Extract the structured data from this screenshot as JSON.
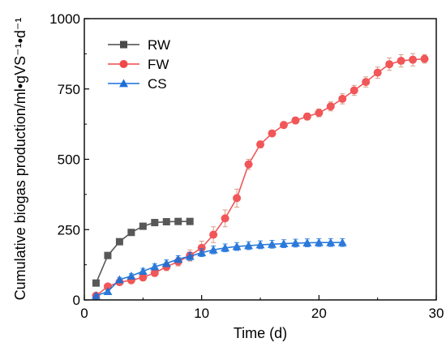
{
  "chart_data": {
    "type": "line",
    "xlabel": "Time (d)",
    "ylabel": "Cumulative biogas production/ml•gVS⁻¹•d⁻¹",
    "xlim": [
      0,
      30
    ],
    "ylim": [
      0,
      1000
    ],
    "xticks": [
      "0",
      "10",
      "20",
      "30"
    ],
    "yticks": [
      "0",
      "250",
      "500",
      "750",
      "1000"
    ],
    "grid": false,
    "legend_position": "top-left",
    "series": [
      {
        "name": "RW",
        "color": "#4a4a4a",
        "marker": "square",
        "x": [
          1,
          2,
          3,
          4,
          5,
          6,
          7,
          8,
          9
        ],
        "y": [
          60,
          158,
          207,
          240,
          262,
          275,
          278,
          279,
          279
        ],
        "err": [
          0,
          0,
          0,
          0,
          0,
          0,
          0,
          0,
          0
        ]
      },
      {
        "name": "FW",
        "color": "#f0484a",
        "marker": "circle",
        "x": [
          1,
          2,
          3,
          4,
          5,
          6,
          7,
          8,
          9,
          10,
          11,
          12,
          13,
          14,
          15,
          16,
          17,
          18,
          19,
          20,
          21,
          22,
          23,
          24,
          25,
          26,
          27,
          28,
          29
        ],
        "y": [
          15,
          48,
          63,
          70,
          80,
          96,
          118,
          136,
          158,
          185,
          232,
          290,
          362,
          482,
          553,
          592,
          622,
          638,
          652,
          665,
          688,
          715,
          745,
          775,
          808,
          838,
          850,
          854,
          857
        ],
        "err": [
          5,
          8,
          10,
          10,
          12,
          12,
          14,
          15,
          20,
          24,
          28,
          30,
          32,
          18,
          12,
          10,
          10,
          12,
          12,
          14,
          16,
          18,
          18,
          18,
          20,
          22,
          22,
          22,
          15
        ]
      },
      {
        "name": "CS",
        "color": "#1a6fd8",
        "marker": "triangle",
        "x": [
          1,
          2,
          3,
          4,
          5,
          6,
          7,
          8,
          9,
          10,
          11,
          12,
          13,
          14,
          15,
          16,
          17,
          18,
          19,
          20,
          21,
          22
        ],
        "y": [
          15,
          30,
          72,
          85,
          102,
          118,
          130,
          145,
          155,
          168,
          178,
          185,
          190,
          193,
          196,
          198,
          200,
          202,
          203,
          204,
          204,
          204
        ],
        "err": [
          4,
          5,
          8,
          8,
          10,
          10,
          12,
          12,
          14,
          14,
          14,
          14,
          14,
          14,
          14,
          14,
          14,
          14,
          14,
          14,
          14,
          14
        ]
      }
    ]
  }
}
